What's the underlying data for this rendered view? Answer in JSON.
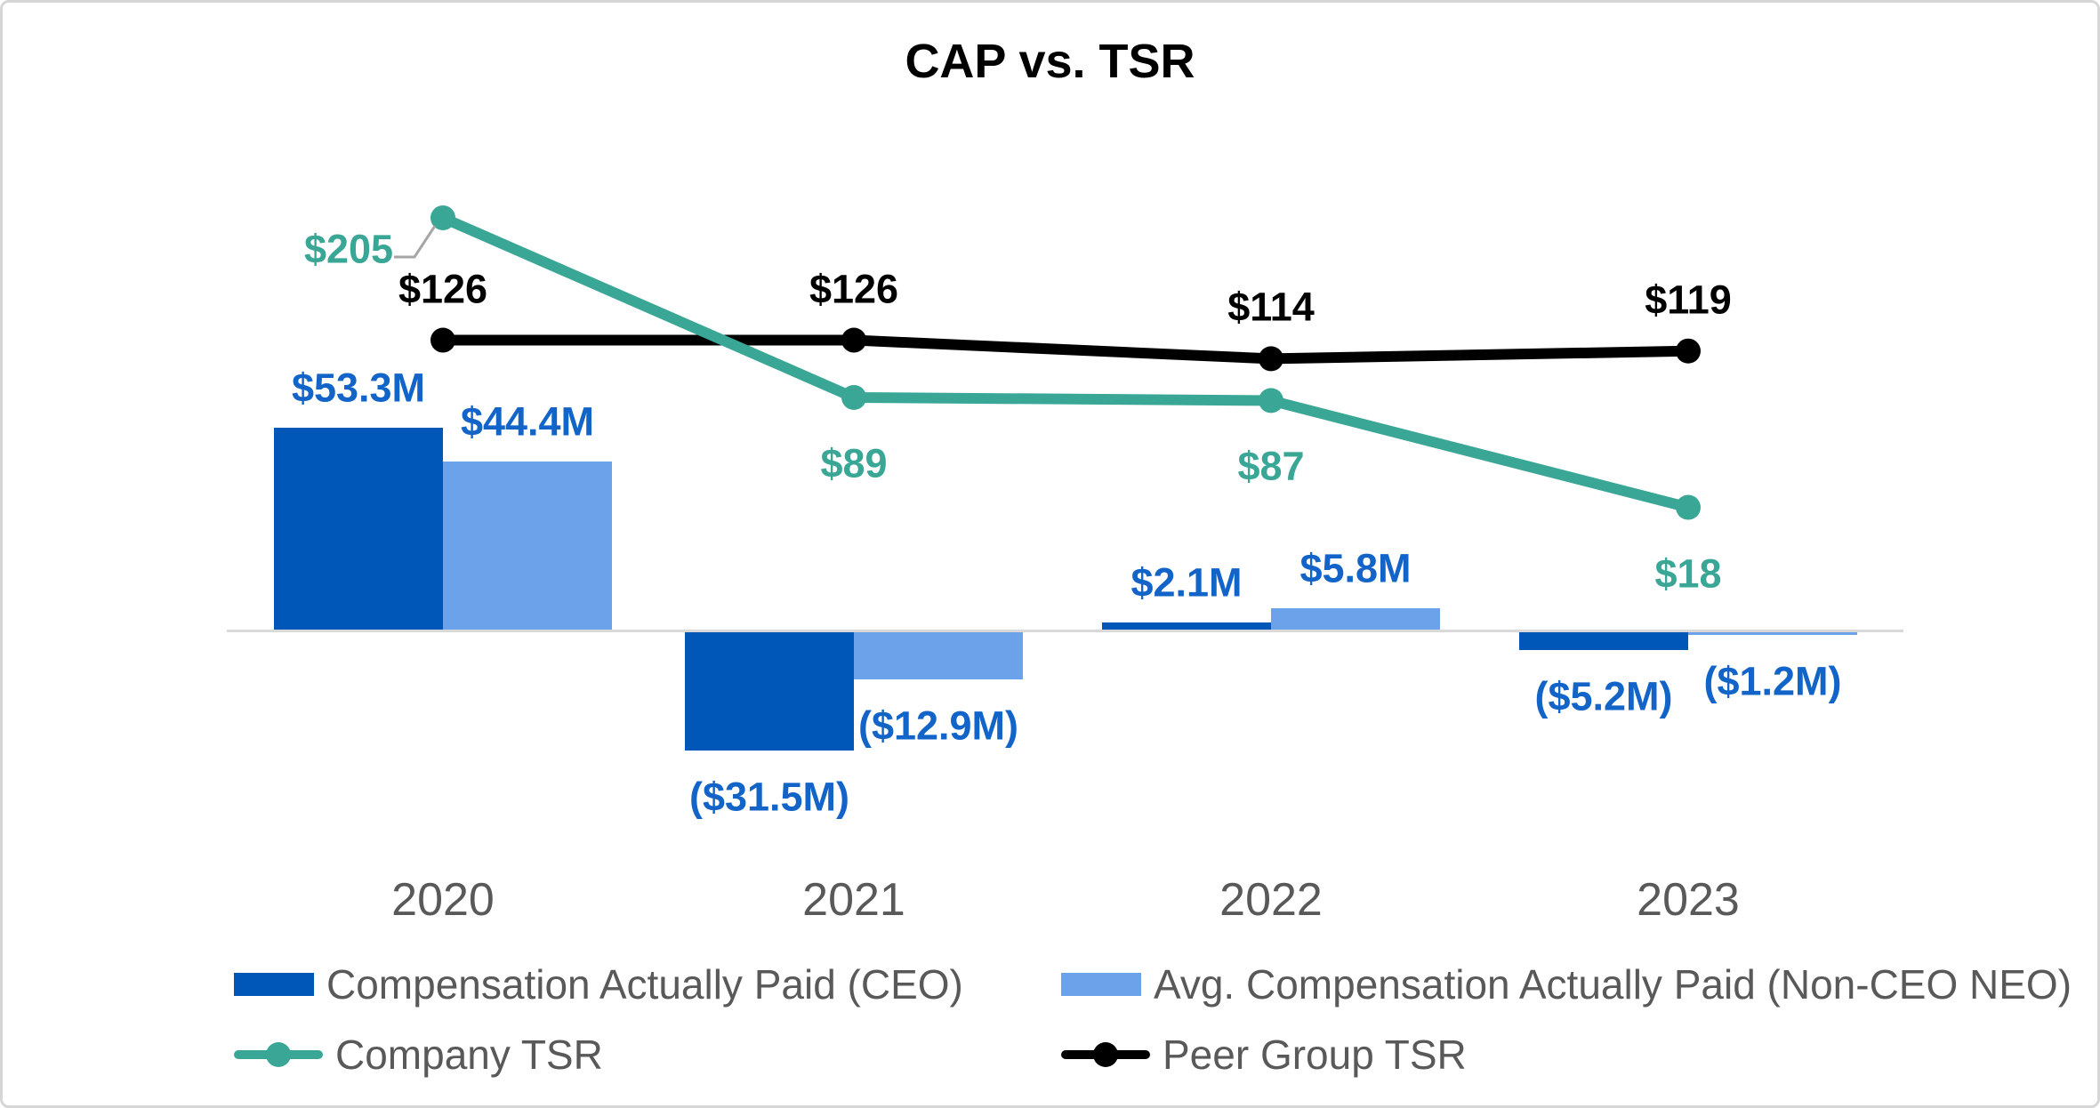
{
  "title": "CAP vs. TSR",
  "chart_data": {
    "type": "combo (bar + line, dual axis)",
    "categories": [
      "2020",
      "2021",
      "2022",
      "2023"
    ],
    "series": [
      {
        "name": "Compensation Actually Paid (CEO)",
        "type": "bar",
        "color": "#0057B8",
        "unit": "USD millions",
        "values": [
          53.3,
          -31.5,
          2.1,
          -5.2
        ],
        "labels": [
          "$53.3M",
          "($31.5M)",
          "$2.1M",
          "($5.2M)"
        ]
      },
      {
        "name": "Avg. Compensation Actually Paid (Non-CEO NEO)",
        "type": "bar",
        "color": "#6BA2E9",
        "unit": "USD millions",
        "values": [
          44.4,
          -12.9,
          5.8,
          -1.2
        ],
        "labels": [
          "$44.4M",
          "($12.9M)",
          "$5.8M",
          "($1.2M)"
        ]
      },
      {
        "name": "Company TSR",
        "type": "line",
        "color": "#3AA796",
        "unit": "USD",
        "values": [
          205,
          89,
          87,
          18
        ],
        "labels": [
          "$205",
          "$89",
          "$87",
          "$18"
        ]
      },
      {
        "name": "Peer Group TSR",
        "type": "line",
        "color": "#000000",
        "unit": "USD",
        "values": [
          126,
          126,
          114,
          119
        ],
        "labels": [
          "$126",
          "$126",
          "$114",
          "$119"
        ]
      }
    ],
    "title": "CAP vs. TSR",
    "xlabel": "",
    "ylabel": "",
    "grid": false,
    "axes_visible": false,
    "legend_position": "bottom"
  },
  "colors": {
    "bar_label_text": "#1264C8",
    "company_tsr_label_text": "#3AA796",
    "peer_tsr_label_text": "#000000",
    "category_text": "#595959",
    "legend_text": "#595959",
    "axis_line": "#D9D9D9",
    "callout_leader": "#A6A6A6",
    "frame_border": "#D6D6D6"
  },
  "legend": {
    "items": [
      {
        "label": "Compensation Actually Paid (CEO)",
        "swatch": "bar",
        "color": "#0057B8"
      },
      {
        "label": "Avg. Compensation Actually Paid (Non-CEO NEO)",
        "swatch": "bar",
        "color": "#6BA2E9"
      },
      {
        "label": "Company TSR",
        "swatch": "line",
        "color": "#3AA796"
      },
      {
        "label": "Peer Group TSR",
        "swatch": "line",
        "color": "#000000"
      }
    ]
  }
}
